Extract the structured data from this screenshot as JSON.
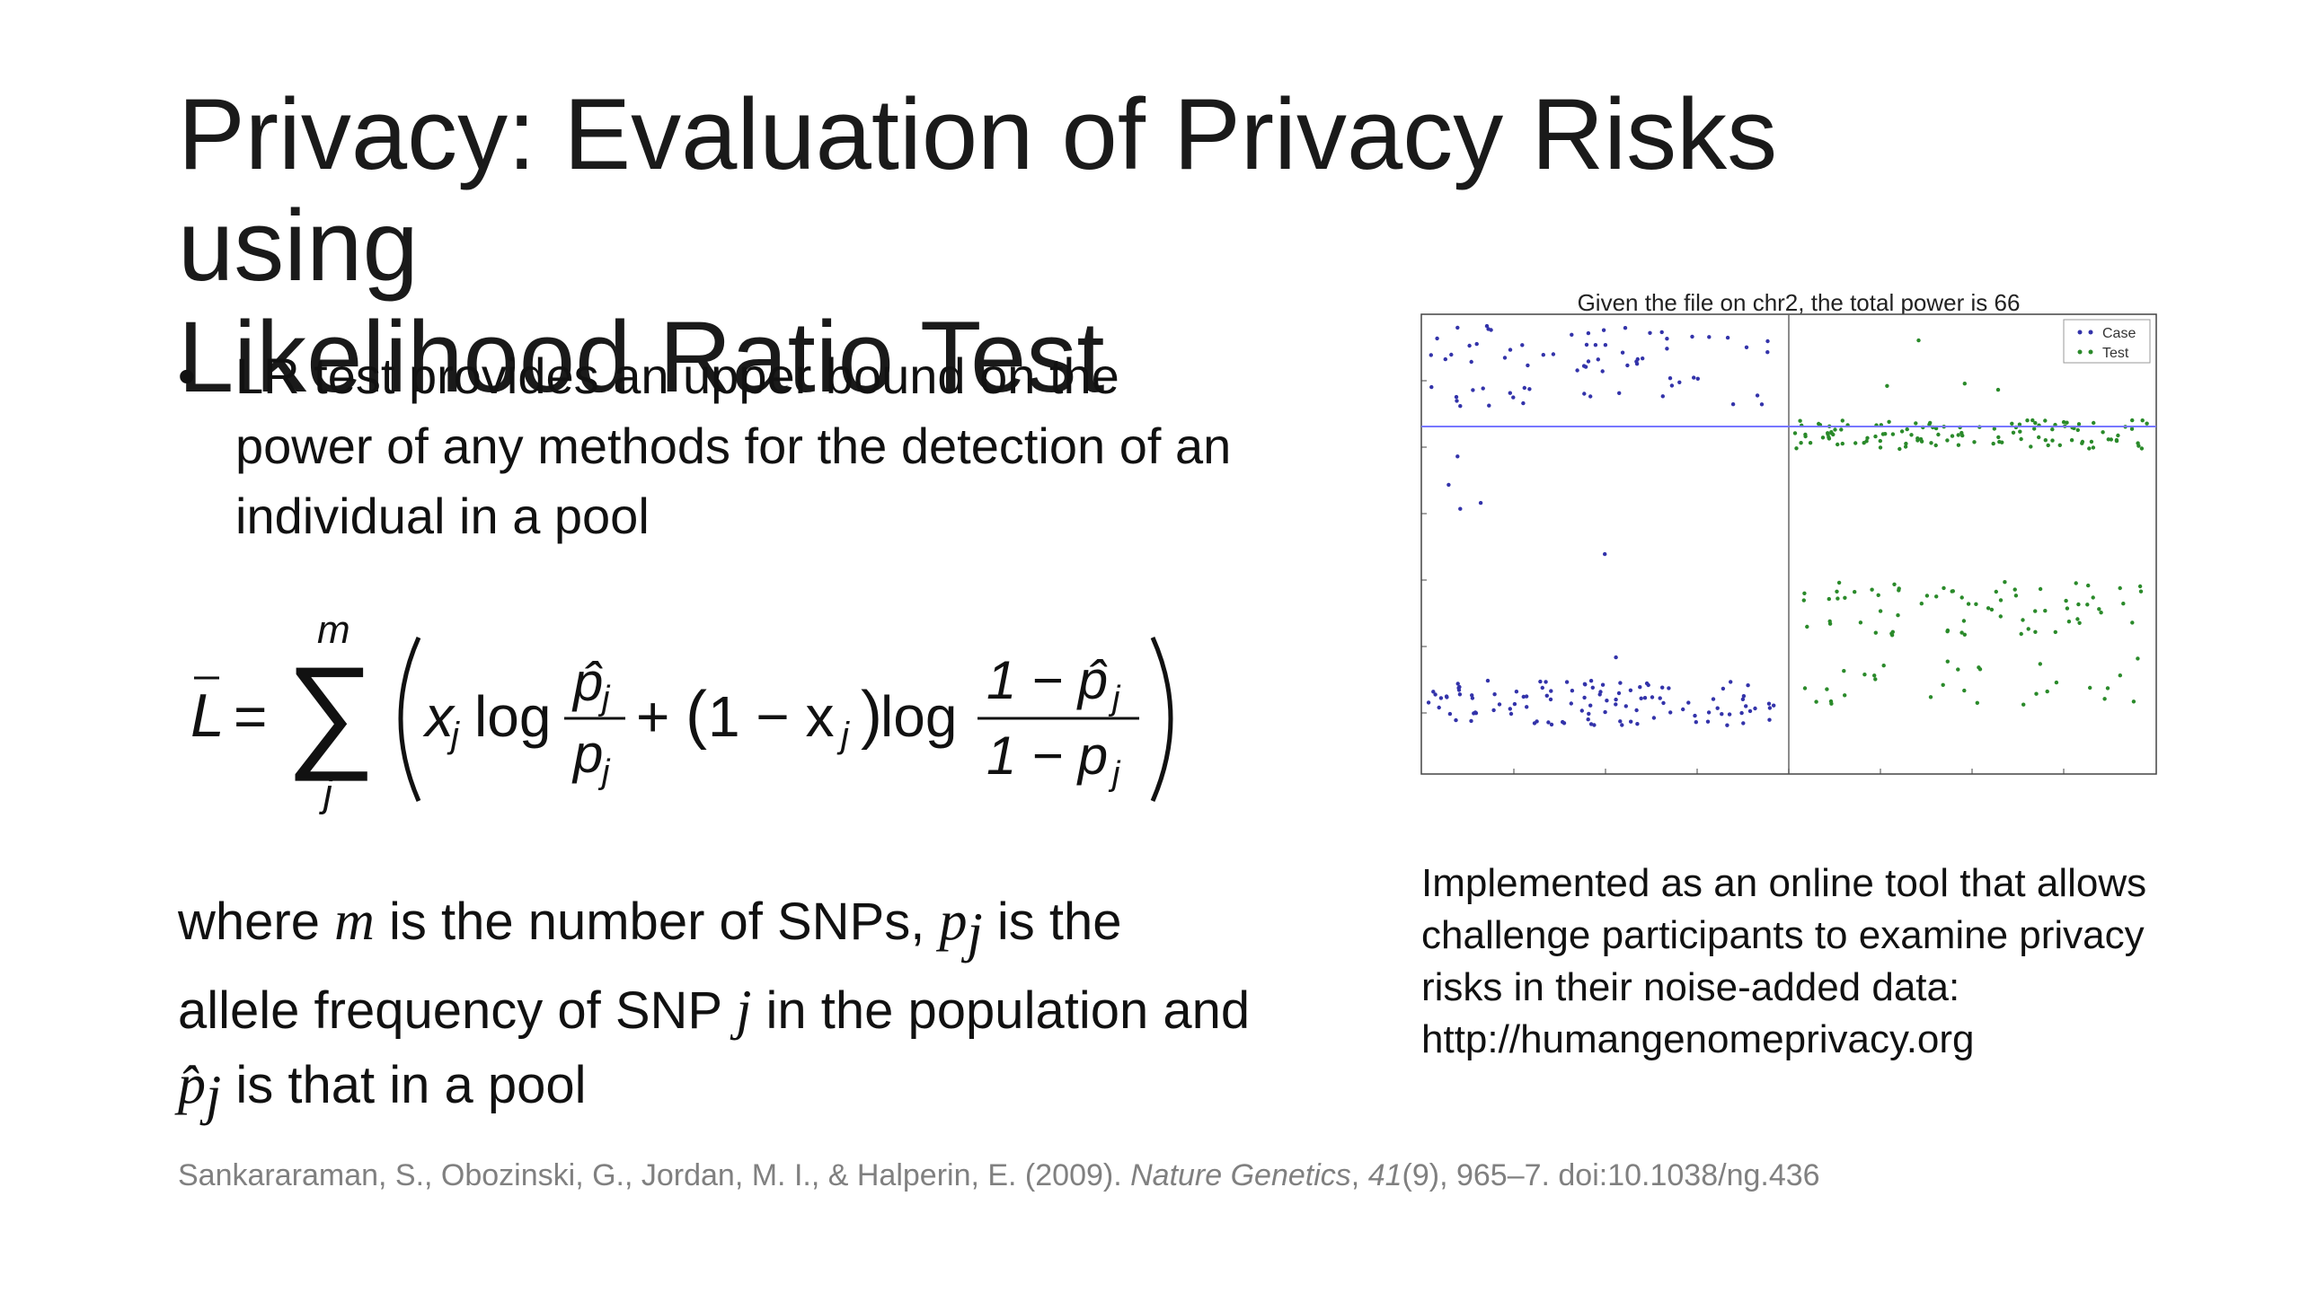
{
  "slide": {
    "title_line1": "Privacy: Evaluation of Privacy Risks using",
    "title_line2": "Likelihood Ratio Test",
    "bullet": "LR test provides an upper bound on the power of any methods for the detection of an individual in a pool",
    "where_parts": [
      "where ",
      "m",
      " is the number of SNPs, ",
      "p",
      "j",
      " is the allele frequency of SNP ",
      "j",
      " in the population and ",
      "p̂",
      "j",
      " is that in a pool"
    ],
    "implemented_text": [
      "Implemented as an online tool  that allows",
      "challenge participants to examine privacy",
      "risks in their noise-added data:",
      "http://humangenomeprivacy.org"
    ],
    "citation_parts": [
      "Sankararaman, S., Obozinski, G., Jordan, M. I., & Halperin, E. (2009). ",
      "Nature Genetics",
      ", ",
      "41",
      "(9), 965–7. doi:10.1038/ng.436"
    ]
  },
  "formula": {
    "lhs": "L",
    "sum_upper": "m",
    "sum_lower": "j",
    "term1_var": "x",
    "log_label": "log",
    "frac1_num": "p̂",
    "frac1_den": "p",
    "plus": "+",
    "one_minus_x": "1 − x",
    "frac2_num": "1 − p̂",
    "frac2_den": "1 − p",
    "sub": "j",
    "equals": "="
  },
  "chart_data": {
    "type": "scatter",
    "title": "Given the file on chr2, the total power is 66",
    "legend": [
      "Case",
      "Test"
    ],
    "legend_position": "top-right",
    "series": [
      {
        "name": "Case",
        "color": "#3333aa"
      },
      {
        "name": "Test",
        "color": "#2a8a2a"
      }
    ],
    "threshold_line_color": "#7777ff",
    "colors": {
      "case": "#3333aa",
      "test": "#2a8a2a",
      "threshold": "#7777ff"
    }
  }
}
